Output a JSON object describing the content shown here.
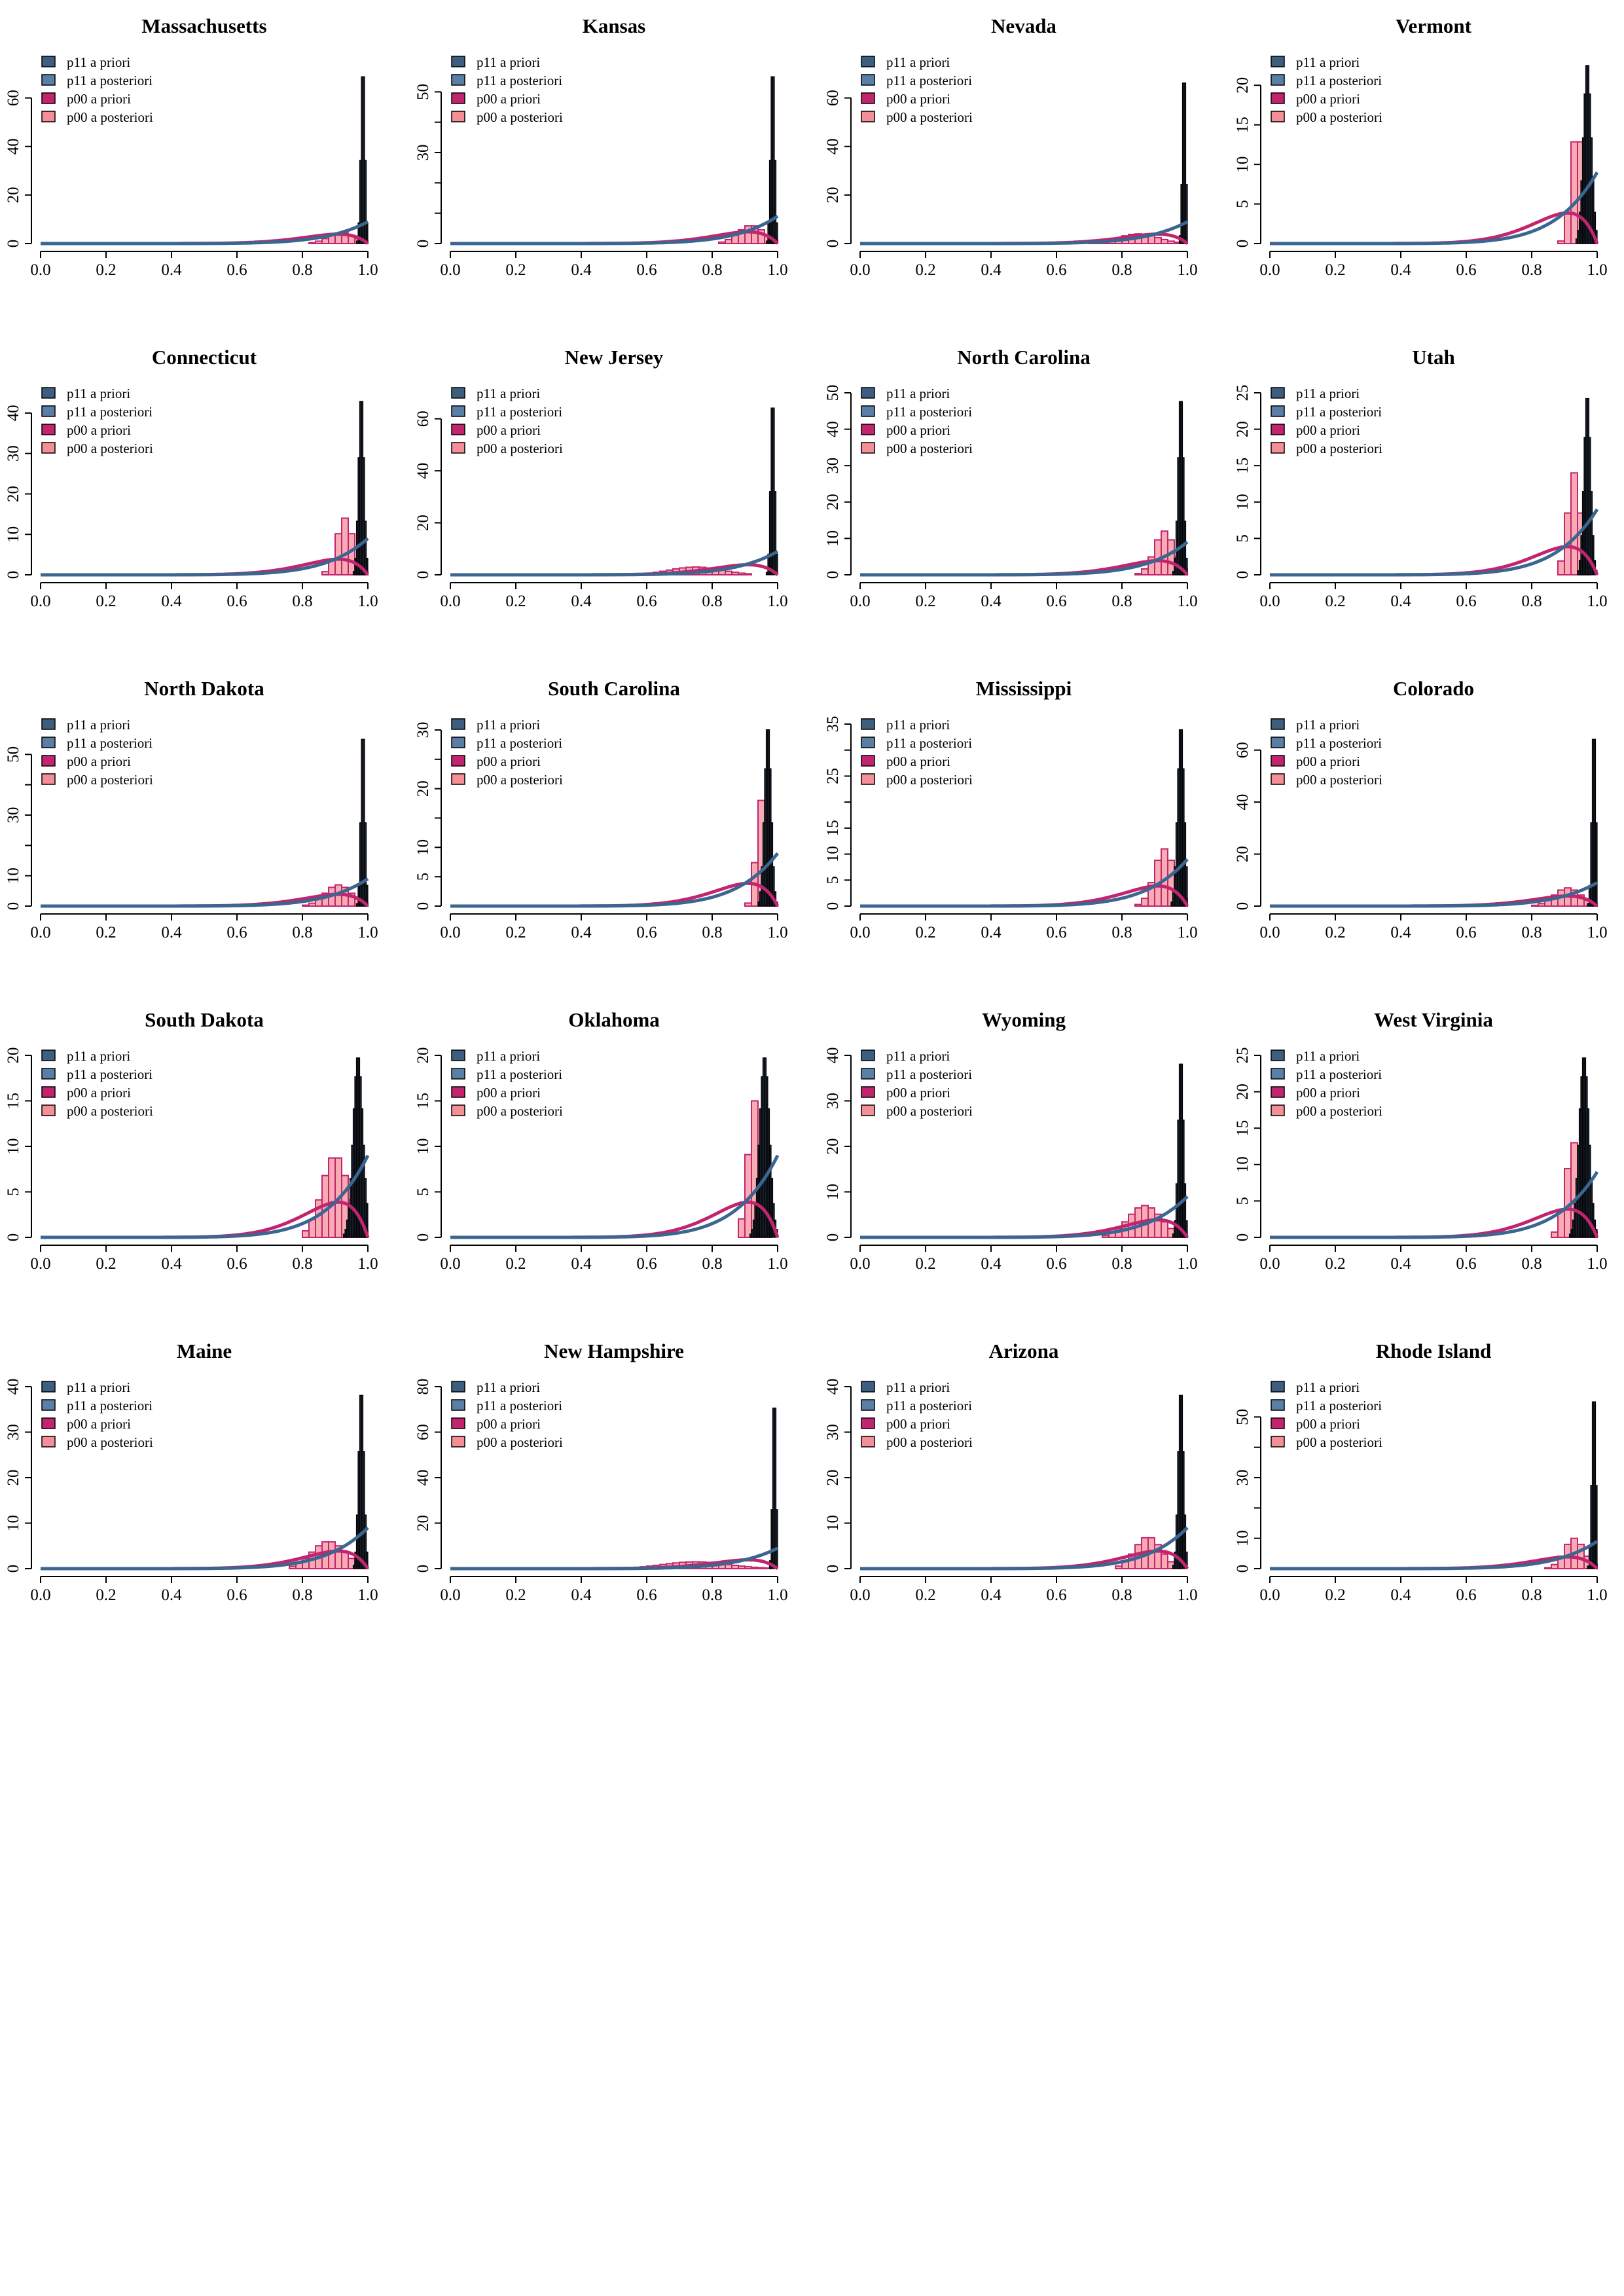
{
  "figure": {
    "legend_position": "top-left",
    "x_ticks": [
      "0.0",
      "0.2",
      "0.4",
      "0.6",
      "0.8",
      "1.0"
    ],
    "legend": [
      {
        "label": "p11 a priori",
        "color": "#3d5e7f"
      },
      {
        "label": "p11 a posteriori",
        "color": "#5a7fa6"
      },
      {
        "label": "p00 a priori",
        "color": "#c2246e"
      },
      {
        "label": "p00 a posteriori",
        "color": "#f48f98"
      }
    ],
    "colors": {
      "p11_prior_curve": "#3a6690",
      "p11_posterior_hist": "#1c2430",
      "p00_prior_curve": "#c2246e",
      "p00_posterior_fill": "#f48f98",
      "p00_posterior_edge": "#c2246e"
    }
  },
  "chart_data": [
    {
      "type": "bar",
      "title": "Massachusetts",
      "xlim": [
        0,
        1
      ],
      "ylim": [
        0,
        75
      ],
      "y_ticks": [
        0,
        20,
        40,
        60
      ],
      "p11_posterior": {
        "center": 0.985,
        "sd": 0.006,
        "peak": 75
      },
      "p00_posterior": {
        "center": 0.92,
        "sd": 0.04,
        "peak": 4.5
      }
    },
    {
      "type": "bar",
      "title": "Kansas",
      "xlim": [
        0,
        1
      ],
      "ylim": [
        0,
        60
      ],
      "y_ticks": [
        0,
        10,
        20,
        30,
        40,
        50
      ],
      "y_labeled_ticks": [
        0,
        30,
        50
      ],
      "p11_posterior": {
        "center": 0.985,
        "sd": 0.006,
        "peak": 60
      },
      "p00_posterior": {
        "center": 0.92,
        "sd": 0.04,
        "peak": 6
      }
    },
    {
      "type": "bar",
      "title": "Nevada",
      "xlim": [
        0,
        1
      ],
      "ylim": [
        0,
        75
      ],
      "y_ticks": [
        0,
        20,
        40,
        60
      ],
      "p11_posterior": {
        "center": 0.99,
        "sd": 0.005,
        "peak": 75
      },
      "p00_posterior": {
        "center": 0.85,
        "sd": 0.06,
        "peak": 4
      }
    },
    {
      "type": "bar",
      "title": "Vermont",
      "xlim": [
        0,
        1
      ],
      "ylim": [
        0,
        23
      ],
      "y_ticks": [
        0,
        5,
        10,
        15,
        20
      ],
      "p11_posterior": {
        "center": 0.97,
        "sd": 0.012,
        "peak": 23
      },
      "p00_posterior": {
        "center": 0.94,
        "sd": 0.018,
        "peak": 15
      }
    },
    {
      "type": "bar",
      "title": "Connecticut",
      "xlim": [
        0,
        1
      ],
      "ylim": [
        0,
        45
      ],
      "y_ticks": [
        0,
        10,
        20,
        30,
        40
      ],
      "p11_posterior": {
        "center": 0.98,
        "sd": 0.008,
        "peak": 45
      },
      "p00_posterior": {
        "center": 0.93,
        "sd": 0.025,
        "peak": 14
      }
    },
    {
      "type": "bar",
      "title": "New Jersey",
      "xlim": [
        0,
        1
      ],
      "ylim": [
        0,
        70
      ],
      "y_ticks": [
        0,
        20,
        40,
        60
      ],
      "p11_posterior": {
        "center": 0.985,
        "sd": 0.006,
        "peak": 70
      },
      "p00_posterior": {
        "center": 0.75,
        "sd": 0.08,
        "peak": 3
      }
    },
    {
      "type": "bar",
      "title": "North Carolina",
      "xlim": [
        0,
        1
      ],
      "ylim": [
        0,
        50
      ],
      "y_ticks": [
        0,
        10,
        20,
        30,
        40,
        50
      ],
      "p11_posterior": {
        "center": 0.98,
        "sd": 0.008,
        "peak": 50
      },
      "p00_posterior": {
        "center": 0.93,
        "sd": 0.03,
        "peak": 12
      }
    },
    {
      "type": "bar",
      "title": "Utah",
      "xlim": [
        0,
        1
      ],
      "ylim": [
        0,
        25
      ],
      "y_ticks": [
        0,
        5,
        10,
        15,
        20,
        25
      ],
      "p11_posterior": {
        "center": 0.97,
        "sd": 0.01,
        "peak": 25
      },
      "p00_posterior": {
        "center": 0.93,
        "sd": 0.02,
        "peak": 14
      }
    },
    {
      "type": "bar",
      "title": "North Dakota",
      "xlim": [
        0,
        1
      ],
      "ylim": [
        0,
        60
      ],
      "y_ticks": [
        0,
        10,
        20,
        30,
        40,
        50
      ],
      "y_labeled_ticks": [
        0,
        10,
        30,
        50
      ],
      "p11_posterior": {
        "center": 0.985,
        "sd": 0.006,
        "peak": 60
      },
      "p00_posterior": {
        "center": 0.91,
        "sd": 0.04,
        "peak": 7
      }
    },
    {
      "type": "bar",
      "title": "South Carolina",
      "xlim": [
        0,
        1
      ],
      "ylim": [
        0,
        31
      ],
      "y_ticks": [
        0,
        5,
        10,
        15,
        20,
        25,
        30
      ],
      "y_labeled_ticks": [
        0,
        5,
        10,
        20,
        30
      ],
      "p11_posterior": {
        "center": 0.97,
        "sd": 0.01,
        "peak": 31
      },
      "p00_posterior": {
        "center": 0.95,
        "sd": 0.015,
        "peak": 18
      }
    },
    {
      "type": "bar",
      "title": "Mississippi",
      "xlim": [
        0,
        1
      ],
      "ylim": [
        0,
        35
      ],
      "y_ticks": [
        0,
        5,
        10,
        15,
        20,
        25,
        30,
        35
      ],
      "y_labeled_ticks": [
        0,
        5,
        10,
        15,
        25,
        35
      ],
      "p11_posterior": {
        "center": 0.98,
        "sd": 0.01,
        "peak": 35
      },
      "p00_posterior": {
        "center": 0.93,
        "sd": 0.03,
        "peak": 11
      }
    },
    {
      "type": "bar",
      "title": "Colorado",
      "xlim": [
        0,
        1
      ],
      "ylim": [
        0,
        70
      ],
      "y_ticks": [
        0,
        20,
        40,
        60
      ],
      "p11_posterior": {
        "center": 0.99,
        "sd": 0.006,
        "peak": 70
      },
      "p00_posterior": {
        "center": 0.91,
        "sd": 0.04,
        "peak": 7
      }
    },
    {
      "type": "bar",
      "title": "South Dakota",
      "xlim": [
        0,
        1
      ],
      "ylim": [
        0,
        20
      ],
      "y_ticks": [
        0,
        5,
        10,
        15,
        20
      ],
      "p11_posterior": {
        "center": 0.97,
        "sd": 0.015,
        "peak": 20
      },
      "p00_posterior": {
        "center": 0.9,
        "sd": 0.04,
        "peak": 9
      }
    },
    {
      "type": "bar",
      "title": "Oklahoma",
      "xlim": [
        0,
        1
      ],
      "ylim": [
        0,
        20
      ],
      "y_ticks": [
        0,
        5,
        10,
        15,
        20
      ],
      "p11_posterior": {
        "center": 0.96,
        "sd": 0.015,
        "peak": 20
      },
      "p00_posterior": {
        "center": 0.93,
        "sd": 0.02,
        "peak": 15
      }
    },
    {
      "type": "bar",
      "title": "Wyoming",
      "xlim": [
        0,
        1
      ],
      "ylim": [
        0,
        40
      ],
      "y_ticks": [
        0,
        10,
        20,
        30,
        40
      ],
      "p11_posterior": {
        "center": 0.98,
        "sd": 0.008,
        "peak": 40
      },
      "p00_posterior": {
        "center": 0.87,
        "sd": 0.05,
        "peak": 7
      }
    },
    {
      "type": "bar",
      "title": "West Virginia",
      "xlim": [
        0,
        1
      ],
      "ylim": [
        0,
        25
      ],
      "y_ticks": [
        0,
        5,
        10,
        15,
        20,
        25
      ],
      "p11_posterior": {
        "center": 0.96,
        "sd": 0.015,
        "peak": 25
      },
      "p00_posterior": {
        "center": 0.93,
        "sd": 0.025,
        "peak": 13
      }
    },
    {
      "type": "bar",
      "title": "Maine",
      "xlim": [
        0,
        1
      ],
      "ylim": [
        0,
        40
      ],
      "y_ticks": [
        0,
        10,
        20,
        30,
        40
      ],
      "p11_posterior": {
        "center": 0.98,
        "sd": 0.008,
        "peak": 40
      },
      "p00_posterior": {
        "center": 0.88,
        "sd": 0.05,
        "peak": 6
      }
    },
    {
      "type": "bar",
      "title": "New Hampshire",
      "xlim": [
        0,
        1
      ],
      "ylim": [
        0,
        80
      ],
      "y_ticks": [
        0,
        20,
        40,
        60,
        80
      ],
      "p11_posterior": {
        "center": 0.99,
        "sd": 0.005,
        "peak": 80
      },
      "p00_posterior": {
        "center": 0.75,
        "sd": 0.1,
        "peak": 3
      }
    },
    {
      "type": "bar",
      "title": "Arizona",
      "xlim": [
        0,
        1
      ],
      "ylim": [
        0,
        40
      ],
      "y_ticks": [
        0,
        10,
        20,
        30,
        40
      ],
      "p11_posterior": {
        "center": 0.98,
        "sd": 0.008,
        "peak": 40
      },
      "p00_posterior": {
        "center": 0.88,
        "sd": 0.04,
        "peak": 7
      }
    },
    {
      "type": "bar",
      "title": "Rhode Island",
      "xlim": [
        0,
        1
      ],
      "ylim": [
        0,
        60
      ],
      "y_ticks": [
        0,
        10,
        20,
        30,
        40,
        50
      ],
      "y_labeled_ticks": [
        0,
        10,
        30,
        50
      ],
      "p11_posterior": {
        "center": 0.99,
        "sd": 0.006,
        "peak": 60
      },
      "p00_posterior": {
        "center": 0.93,
        "sd": 0.03,
        "peak": 10
      }
    }
  ]
}
